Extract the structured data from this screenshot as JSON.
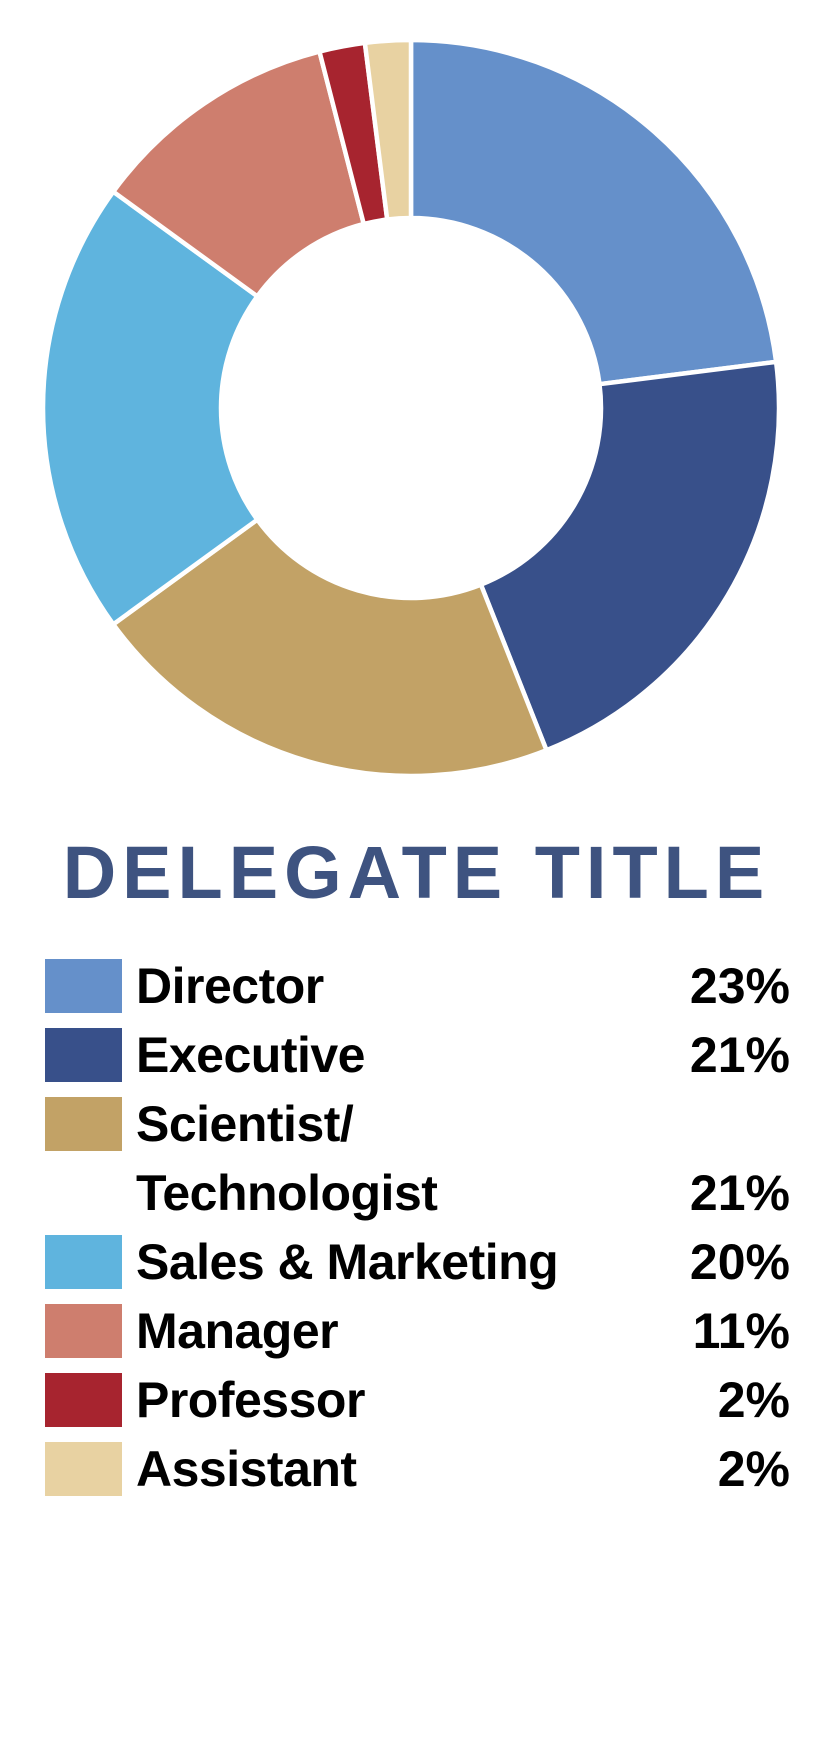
{
  "chart": {
    "title": "DELEGATE TITLE",
    "title_color": "#3E5380",
    "background_color": "#FFFFFF",
    "separator_color": "#FFFFFF"
  },
  "chart_data": {
    "type": "pie",
    "subtype": "donut",
    "title": "DELEGATE TITLE",
    "categories": [
      "Director",
      "Executive",
      "Scientist/\nTechnologist",
      "Sales & Marketing",
      "Manager",
      "Professor",
      "Assistant"
    ],
    "values": [
      23,
      21,
      21,
      20,
      11,
      2,
      2
    ],
    "value_labels": [
      "23%",
      "21%",
      "21%",
      "20%",
      "11%",
      "2%",
      "2%"
    ],
    "colors": [
      "#6590CA",
      "#38508A",
      "#C2A266",
      "#5FB4DE",
      "#CE7E6E",
      "#A7242F",
      "#E8D2A2"
    ],
    "slice_names": [
      "director",
      "executive",
      "scientist-technologist",
      "sales-marketing",
      "manager",
      "professor",
      "assistant"
    ],
    "start_angle_deg": -90,
    "direction": "clockwise",
    "inner_radius_ratio": 0.52,
    "gridlines": false,
    "legend_position": "bottom",
    "data_labels_on_slices": false
  }
}
